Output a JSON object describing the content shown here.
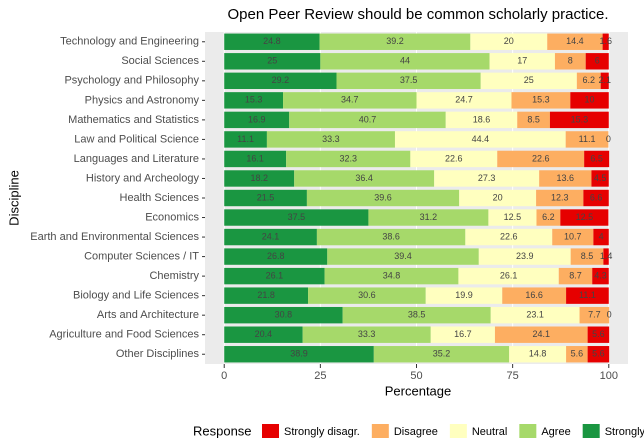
{
  "chart_data": {
    "type": "stacked_barh",
    "title": "Open Peer Review should be common scholarly practice.",
    "x_label": "Percentage",
    "y_label": "Discipline",
    "legend_title": "Response",
    "categories": [
      "Technology and Engineering",
      "Social Sciences",
      "Psychology and Philosophy",
      "Physics and Astronomy",
      "Mathematics and Statistics",
      "Law and Political Science",
      "Languages and Literature",
      "History and Archeology",
      "Health Sciences",
      "Economics",
      "Earth and Environmental Sciences",
      "Computer Sciences / IT",
      "Chemistry",
      "Biology and Life Sciences",
      "Arts and Architecture",
      "Agriculture and Food Sciences",
      "Other Disciplines"
    ],
    "series": [
      {
        "name": "Strongly agr.",
        "color": "#1a9641",
        "values": [
          24.8,
          25,
          29.2,
          15.3,
          16.9,
          11.1,
          16.1,
          18.2,
          21.5,
          37.5,
          24.1,
          26.8,
          26.1,
          21.8,
          30.8,
          20.4,
          38.9
        ]
      },
      {
        "name": "Agree",
        "color": "#a6d96a",
        "values": [
          39.2,
          44,
          37.5,
          34.7,
          40.7,
          33.3,
          32.3,
          36.4,
          39.6,
          31.2,
          38.6,
          39.4,
          34.8,
          30.6,
          38.5,
          33.3,
          35.2
        ]
      },
      {
        "name": "Neutral",
        "color": "#ffffbf",
        "values": [
          20,
          17,
          25,
          24.7,
          18.6,
          44.4,
          22.6,
          27.3,
          20,
          12.5,
          22.6,
          23.9,
          26.1,
          19.9,
          23.1,
          16.7,
          14.8
        ]
      },
      {
        "name": "Disagree",
        "color": "#fdae61",
        "values": [
          14.4,
          8,
          6.2,
          15.3,
          8.5,
          11.1,
          22.6,
          13.6,
          12.3,
          6.2,
          10.7,
          8.5,
          8.7,
          16.6,
          7.7,
          24.1,
          5.6
        ]
      },
      {
        "name": "Strongly disagr.",
        "color": "#e60000",
        "values": [
          1.6,
          6,
          2.1,
          10,
          15.3,
          0,
          6.5,
          4.5,
          6.6,
          12.5,
          4,
          1.4,
          4.3,
          11.1,
          0,
          5.6,
          5.6
        ]
      }
    ],
    "xlim": [
      -5,
      105
    ],
    "xticks": [
      0,
      25,
      50,
      75,
      100
    ],
    "grid": true
  }
}
